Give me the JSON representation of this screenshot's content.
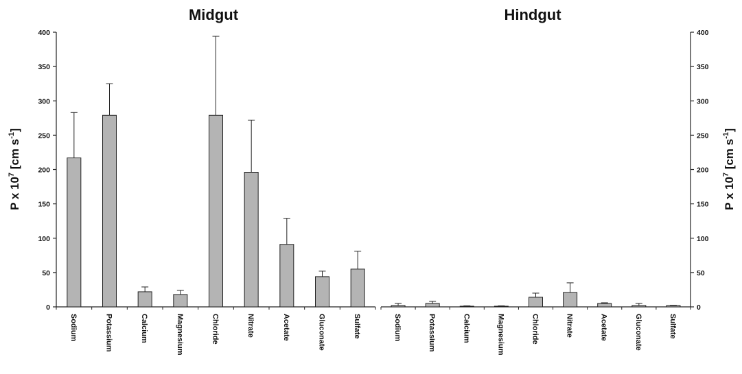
{
  "chart_data": [
    {
      "type": "bar",
      "title": "Midgut",
      "ylabel": "P x 10^7 [cm s^-1]",
      "ylabel_parts": {
        "p": "P x 10",
        "exp1": "7",
        "mid": " [cm s",
        "exp2": "-1",
        "end": "]"
      },
      "ylim": [
        0,
        400
      ],
      "yticks": [
        0,
        50,
        100,
        150,
        200,
        250,
        300,
        350,
        400
      ],
      "categories": [
        "Sodium",
        "Potassium",
        "Calcium",
        "Magnesium",
        "Chloride",
        "Nitrate",
        "Acetate",
        "Gluconate",
        "Sulfate"
      ],
      "values": [
        217,
        279,
        22,
        18,
        279,
        196,
        91,
        44,
        55
      ],
      "errors": [
        66,
        46,
        7,
        6,
        115,
        76,
        38,
        8,
        26
      ],
      "bar_color": "#b4b4b4"
    },
    {
      "type": "bar",
      "title": "Hindgut",
      "ylabel": "P x 10^7 [cm s^-1]",
      "ylabel_parts": {
        "p": "P x 10",
        "exp1": "7",
        "mid": " [cm s",
        "exp2": "-1",
        "end": "]"
      },
      "ylim": [
        0,
        400
      ],
      "yticks": [
        0,
        50,
        100,
        150,
        200,
        250,
        300,
        350,
        400
      ],
      "categories": [
        "Sodium",
        "Potassium",
        "Calcium",
        "Magnesium",
        "Chloride",
        "Nitrate",
        "Acetate",
        "Gluconate",
        "Sulfate"
      ],
      "values": [
        2,
        5,
        1,
        1,
        14,
        21,
        5,
        2,
        2
      ],
      "errors": [
        3,
        3,
        0.5,
        0.5,
        6,
        14,
        1,
        3,
        0.5
      ],
      "bar_color": "#b4b4b4"
    }
  ]
}
